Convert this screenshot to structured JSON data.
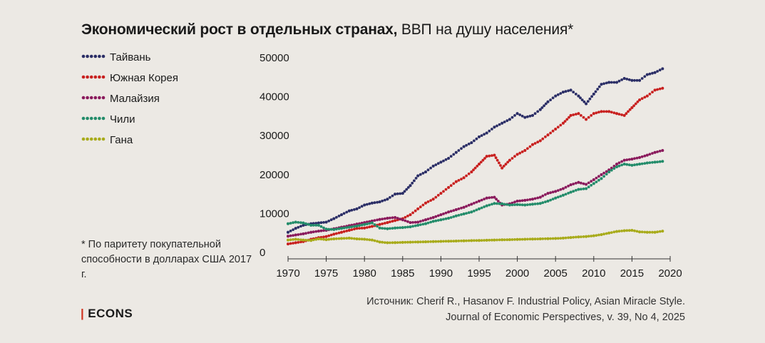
{
  "title": {
    "bold": "Экономический рост в отдельных странах,",
    "normal": " ВВП на душу населения*"
  },
  "footnote": "* По паритету покупательной способности в долларах США 2017 г.",
  "source": {
    "line1": "Источник: Cherif R., Hasanov F. Industrial Policy, Asian Miracle Style.",
    "line2": "Journal of Economic Perspectives, v. 39, No 4, 2025"
  },
  "logo": {
    "bar": "|",
    "text": "ECONS"
  },
  "chart_data": {
    "type": "line",
    "title": "Экономический рост в отдельных странах, ВВП на душу населения*",
    "xlabel": "",
    "ylabel": "",
    "xlim": [
      1970,
      2020
    ],
    "ylim": [
      0,
      50000
    ],
    "x_ticks": [
      "1970",
      "1975",
      "1980",
      "1985",
      "1990",
      "1995",
      "2000",
      "2005",
      "2010",
      "2015",
      "2020"
    ],
    "y_ticks": [
      "0",
      "10000",
      "20000",
      "30000",
      "40000",
      "50000"
    ],
    "legend_position": "top-left",
    "grid": false,
    "x": [
      1970,
      1971,
      1972,
      1973,
      1974,
      1975,
      1976,
      1977,
      1978,
      1979,
      1980,
      1981,
      1982,
      1983,
      1984,
      1985,
      1986,
      1987,
      1988,
      1989,
      1990,
      1991,
      1992,
      1993,
      1994,
      1995,
      1996,
      1997,
      1998,
      1999,
      2000,
      2001,
      2002,
      2003,
      2004,
      2005,
      2006,
      2007,
      2008,
      2009,
      2010,
      2011,
      2012,
      2013,
      2014,
      2015,
      2016,
      2017,
      2018,
      2019
    ],
    "series": [
      {
        "name": "Тайвань",
        "color": "#2b2e66",
        "values": [
          5000,
          6000,
          6800,
          7200,
          7400,
          7600,
          8500,
          9500,
          10500,
          11000,
          12000,
          12500,
          12800,
          13500,
          14800,
          15000,
          17000,
          19500,
          20500,
          22000,
          23000,
          24000,
          25500,
          27000,
          28000,
          29500,
          30500,
          32000,
          33000,
          34000,
          35500,
          34500,
          35000,
          36500,
          38500,
          40000,
          41000,
          41500,
          40000,
          38000,
          40500,
          43000,
          43500,
          43500,
          44500,
          44000,
          44000,
          45500,
          46000,
          47000
        ]
      },
      {
        "name": "Южная Корея",
        "color": "#c8201f",
        "values": [
          2000,
          2300,
          2600,
          3200,
          3600,
          3900,
          4500,
          5000,
          5500,
          6000,
          6100,
          6500,
          7000,
          7500,
          8000,
          8500,
          9500,
          11000,
          12500,
          13500,
          15000,
          16500,
          18000,
          19000,
          20500,
          22500,
          24500,
          24800,
          21500,
          23500,
          25000,
          26000,
          27500,
          28500,
          30000,
          31500,
          33000,
          35000,
          35500,
          34000,
          35500,
          36000,
          36000,
          35500,
          35000,
          37000,
          39000,
          40000,
          41500,
          42000
        ]
      },
      {
        "name": "Малайзия",
        "color": "#8a1a5c",
        "values": [
          4000,
          4300,
          4600,
          5000,
          5300,
          5500,
          5900,
          6300,
          6700,
          7100,
          7500,
          7900,
          8300,
          8600,
          8800,
          8200,
          7500,
          7600,
          8200,
          8800,
          9500,
          10200,
          10800,
          11400,
          12200,
          13000,
          13800,
          14000,
          12000,
          12300,
          13000,
          13200,
          13500,
          14000,
          15000,
          15500,
          16200,
          17200,
          17800,
          17300,
          18500,
          19800,
          21000,
          22500,
          23500,
          23800,
          24200,
          24800,
          25500,
          26000
        ]
      },
      {
        "name": "Чили",
        "color": "#238c6a",
        "values": [
          7200,
          7600,
          7400,
          6800,
          6800,
          5800,
          5700,
          6000,
          6300,
          6600,
          7000,
          7400,
          6100,
          5900,
          6100,
          6200,
          6400,
          6800,
          7200,
          7800,
          8200,
          8600,
          9200,
          9700,
          10200,
          11000,
          11800,
          12400,
          12300,
          12000,
          12100,
          12000,
          12200,
          12400,
          13000,
          13800,
          14500,
          15300,
          16000,
          16200,
          17500,
          18800,
          20500,
          21800,
          22500,
          22200,
          22500,
          22800,
          23000,
          23200
        ]
      },
      {
        "name": "Гана",
        "color": "#a8ab1a",
        "values": [
          3000,
          3200,
          3000,
          2900,
          3300,
          3100,
          3300,
          3400,
          3500,
          3300,
          3200,
          3000,
          2500,
          2300,
          2350,
          2400,
          2450,
          2500,
          2550,
          2600,
          2650,
          2700,
          2750,
          2800,
          2850,
          2900,
          2950,
          3000,
          3050,
          3100,
          3150,
          3200,
          3250,
          3300,
          3350,
          3400,
          3500,
          3650,
          3800,
          3900,
          4100,
          4400,
          4800,
          5200,
          5400,
          5500,
          5100,
          5000,
          5000,
          5300
        ]
      }
    ]
  }
}
